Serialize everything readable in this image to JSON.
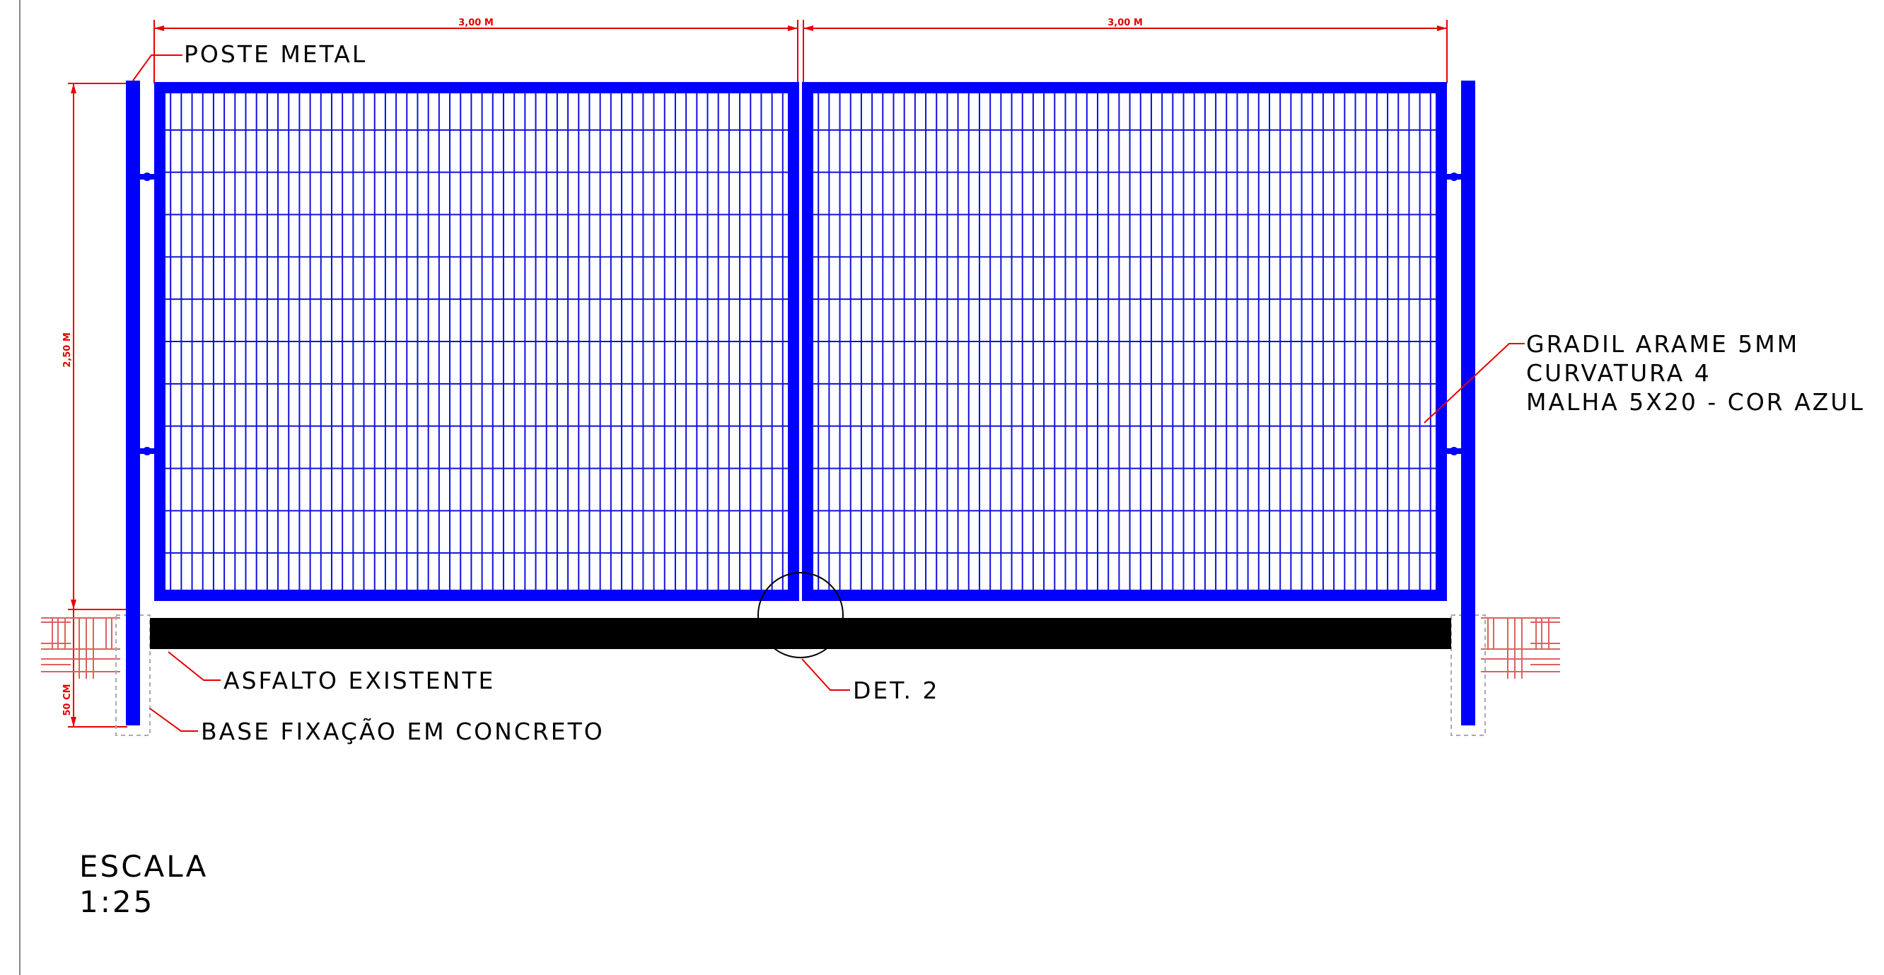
{
  "drawing": {
    "dimensions": {
      "panel_left_width": "3,00 M",
      "panel_right_width": "3,00 M",
      "height": "2,50 M",
      "foundation_depth": "50 CM"
    },
    "labels": {
      "post": "POSTE METAL",
      "mesh_line1": "GRADIL ARAME 5MM",
      "mesh_line2": "CURVATURA 4",
      "mesh_line3": "MALHA 5X20 - COR AZUL",
      "asphalt": "ASFALTO EXISTENTE",
      "base": "BASE FIXAÇÃO EM CONCRETO",
      "detail": "DET. 2"
    },
    "scale": {
      "title": "ESCALA",
      "value": "1:25"
    },
    "colors": {
      "mesh": "#0000ff",
      "dimension": "#e60000",
      "asphalt": "#000000"
    }
  }
}
